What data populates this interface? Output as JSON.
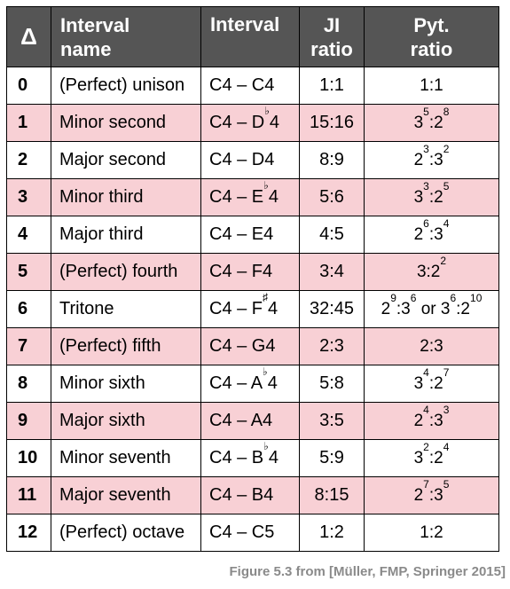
{
  "header": {
    "delta": "Δ",
    "name_l1": "Interval",
    "name_l2": "name",
    "interval": "Interval",
    "ji_l1": "JI",
    "ji_l2": "ratio",
    "pyt_l1": "Pyt.",
    "pyt_l2": "ratio"
  },
  "rows": [
    {
      "d": "0",
      "name": "(Perfect) unison",
      "n1": "C4 – C",
      "acc": "",
      "n2": "4",
      "ji": "1:1",
      "pyt": [
        [
          "1:1",
          ""
        ]
      ]
    },
    {
      "d": "1",
      "name": "Minor second",
      "n1": "C4 – D",
      "acc": "♭",
      "n2": "4",
      "ji": "15:16",
      "pyt": [
        [
          "3",
          "5"
        ],
        [
          ":2",
          "8"
        ]
      ]
    },
    {
      "d": "2",
      "name": "Major second",
      "n1": "C4 – D",
      "acc": "",
      "n2": "4",
      "ji": "8:9",
      "pyt": [
        [
          "2",
          "3"
        ],
        [
          ":3",
          "2"
        ]
      ]
    },
    {
      "d": "3",
      "name": "Minor third",
      "n1": "C4 – E",
      "acc": "♭",
      "n2": "4",
      "ji": "5:6",
      "pyt": [
        [
          "3",
          "3"
        ],
        [
          ":2",
          "5"
        ]
      ]
    },
    {
      "d": "4",
      "name": "Major third",
      "n1": "C4 – E",
      "acc": "",
      "n2": "4",
      "ji": "4:5",
      "pyt": [
        [
          "2",
          "6"
        ],
        [
          ":3",
          "4"
        ]
      ]
    },
    {
      "d": "5",
      "name": "(Perfect) fourth",
      "n1": "C4 – F",
      "acc": "",
      "n2": "4",
      "ji": "3:4",
      "pyt": [
        [
          "3:2",
          "2"
        ]
      ]
    },
    {
      "d": "6",
      "name": "Tritone",
      "n1": "C4 – F",
      "acc": "♯",
      "n2": "4",
      "ji": "32:45",
      "pyt": [
        [
          "2",
          "9"
        ],
        [
          ":3",
          "6"
        ],
        [
          " or 3",
          "6"
        ],
        [
          ":2",
          "10"
        ]
      ]
    },
    {
      "d": "7",
      "name": "(Perfect) fifth",
      "n1": "C4 – G",
      "acc": "",
      "n2": "4",
      "ji": "2:3",
      "pyt": [
        [
          "2:3",
          ""
        ]
      ]
    },
    {
      "d": "8",
      "name": "Minor sixth",
      "n1": "C4 – A",
      "acc": "♭",
      "n2": "4",
      "ji": "5:8",
      "pyt": [
        [
          "3",
          "4"
        ],
        [
          ":2",
          "7"
        ]
      ]
    },
    {
      "d": "9",
      "name": "Major sixth",
      "n1": "C4 – A",
      "acc": "",
      "n2": "4",
      "ji": "3:5",
      "pyt": [
        [
          "2",
          "4"
        ],
        [
          ":3",
          "3"
        ]
      ]
    },
    {
      "d": "10",
      "name": "Minor seventh",
      "n1": "C4 – B",
      "acc": "♭",
      "n2": "4",
      "ji": "5:9",
      "pyt": [
        [
          "3",
          "2"
        ],
        [
          ":2",
          "4"
        ]
      ]
    },
    {
      "d": "11",
      "name": "Major seventh",
      "n1": "C4 – B",
      "acc": "",
      "n2": "4",
      "ji": "8:15",
      "pyt": [
        [
          "2",
          "7"
        ],
        [
          ":3",
          "5"
        ]
      ]
    },
    {
      "d": "12",
      "name": "(Perfect) octave",
      "n1": "C4 – C",
      "acc": "",
      "n2": "5",
      "ji": "1:2",
      "pyt": [
        [
          "1:2",
          ""
        ]
      ]
    }
  ],
  "caption": "Figure 5.3 from [Müller, FMP, Springer 2015]"
}
